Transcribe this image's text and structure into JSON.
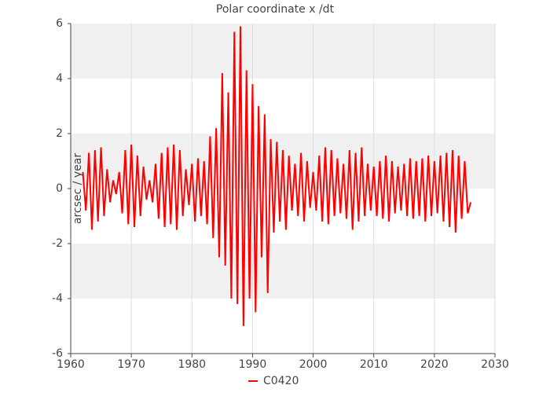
{
  "chart_data": {
    "type": "line",
    "title": "Polar coordinate x /dt",
    "y_label": "arcsec / year",
    "xlim": [
      1960,
      2030
    ],
    "xticks": [
      1960,
      1970,
      1980,
      1990,
      2000,
      2010,
      2020,
      2030
    ],
    "ylim": [
      -6,
      6
    ],
    "yticks": [
      -6,
      -4,
      -2,
      0,
      2,
      4,
      6
    ],
    "grid": true,
    "band_color": "#f0f0f0",
    "legend": "bottom",
    "x": [
      1962,
      1962.5,
      1963,
      1963.5,
      1964,
      1964.5,
      1965,
      1965.5,
      1966,
      1966.5,
      1967,
      1967.5,
      1968,
      1968.5,
      1969,
      1969.5,
      1970,
      1970.5,
      1971,
      1971.5,
      1972,
      1972.5,
      1973,
      1973.5,
      1974,
      1974.5,
      1975,
      1975.5,
      1976,
      1976.5,
      1977,
      1977.5,
      1978,
      1978.5,
      1979,
      1979.5,
      1980,
      1980.5,
      1981,
      1981.5,
      1982,
      1982.5,
      1983,
      1983.5,
      1984,
      1984.5,
      1985,
      1985.5,
      1986,
      1986.5,
      1987,
      1987.5,
      1988,
      1988.5,
      1989,
      1989.5,
      1990,
      1990.5,
      1991,
      1991.5,
      1992,
      1992.5,
      1993,
      1993.5,
      1994,
      1994.5,
      1995,
      1995.5,
      1996,
      1996.5,
      1997,
      1997.5,
      1998,
      1998.5,
      1999,
      1999.5,
      2000,
      2000.5,
      2001,
      2001.5,
      2002,
      2002.5,
      2003,
      2003.5,
      2004,
      2004.5,
      2005,
      2005.5,
      2006,
      2006.5,
      2007,
      2007.5,
      2008,
      2008.5,
      2009,
      2009.5,
      2010,
      2010.5,
      2011,
      2011.5,
      2012,
      2012.5,
      2013,
      2013.5,
      2014,
      2014.5,
      2015,
      2015.5,
      2016,
      2016.5,
      2017,
      2017.5,
      2018,
      2018.5,
      2019,
      2019.5,
      2020,
      2020.5,
      2021,
      2021.5,
      2022,
      2022.5,
      2023,
      2023.5,
      2024,
      2024.5,
      2025,
      2025.5,
      2026
    ],
    "series": [
      {
        "name": "C0420",
        "color": "#ff0000",
        "values": [
          0.6,
          -0.8,
          1.3,
          -1.5,
          1.4,
          -1.2,
          1.5,
          -1.0,
          0.7,
          -0.5,
          0.3,
          -0.2,
          0.6,
          -0.9,
          1.4,
          -1.3,
          1.6,
          -1.4,
          1.2,
          -1.0,
          0.8,
          -0.4,
          0.3,
          -0.5,
          0.9,
          -1.1,
          1.3,
          -1.4,
          1.5,
          -1.3,
          1.6,
          -1.5,
          1.4,
          -1.0,
          0.7,
          -0.6,
          0.9,
          -1.2,
          1.1,
          -1.0,
          1.0,
          -1.3,
          1.9,
          -1.8,
          2.2,
          -2.5,
          4.2,
          -2.8,
          3.5,
          -4.0,
          5.7,
          -4.2,
          5.9,
          -5.0,
          4.3,
          -4.0,
          3.8,
          -4.5,
          3.0,
          -2.5,
          2.7,
          -3.8,
          1.8,
          -1.6,
          1.7,
          -1.2,
          1.4,
          -1.5,
          1.2,
          -0.8,
          0.9,
          -1.0,
          1.3,
          -1.2,
          1.0,
          -0.7,
          0.6,
          -0.8,
          1.2,
          -1.2,
          1.5,
          -1.3,
          1.4,
          -1.0,
          1.1,
          -0.9,
          0.9,
          -1.1,
          1.4,
          -1.5,
          1.3,
          -1.2,
          1.5,
          -1.0,
          0.9,
          -0.8,
          0.8,
          -1.0,
          1.0,
          -1.1,
          1.2,
          -1.2,
          1.0,
          -0.9,
          0.8,
          -0.8,
          0.9,
          -1.0,
          1.1,
          -1.1,
          1.0,
          -1.0,
          1.1,
          -1.2,
          1.2,
          -1.0,
          1.0,
          -0.9,
          1.2,
          -1.2,
          1.3,
          -1.4,
          1.4,
          -1.6,
          1.2,
          -1.1,
          1.0,
          -0.9,
          -0.5
        ]
      }
    ]
  }
}
